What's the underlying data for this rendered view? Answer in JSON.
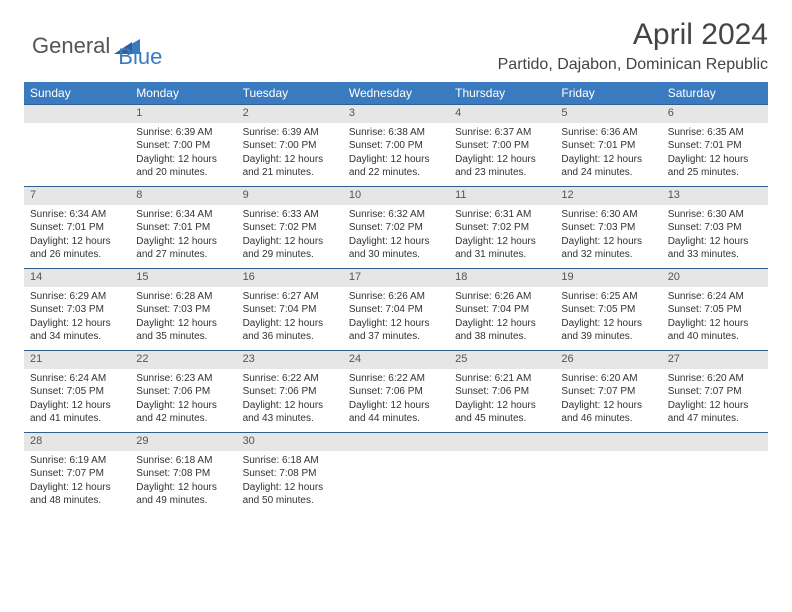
{
  "logo": {
    "general": "General",
    "blue": "Blue"
  },
  "title": "April 2024",
  "location": "Partido, Dajabon, Dominican Republic",
  "style": {
    "header_bg": "#3a7bbf",
    "header_fg": "#ffffff",
    "daynum_bg": "#e6e6e6",
    "row_divider": "#2f5f8f",
    "body_bg": "#ffffff",
    "text_color": "#333333",
    "title_color": "#444444",
    "font_family": "Arial, Helvetica, sans-serif",
    "month_title_fontsize": 30,
    "location_fontsize": 16,
    "header_fontsize": 12,
    "daynum_fontsize": 11,
    "cell_fontsize": 10
  },
  "weekdays": [
    "Sunday",
    "Monday",
    "Tuesday",
    "Wednesday",
    "Thursday",
    "Friday",
    "Saturday"
  ],
  "weeks": [
    [
      null,
      {
        "n": "1",
        "sunrise": "Sunrise: 6:39 AM",
        "sunset": "Sunset: 7:00 PM",
        "daylight": "Daylight: 12 hours and 20 minutes."
      },
      {
        "n": "2",
        "sunrise": "Sunrise: 6:39 AM",
        "sunset": "Sunset: 7:00 PM",
        "daylight": "Daylight: 12 hours and 21 minutes."
      },
      {
        "n": "3",
        "sunrise": "Sunrise: 6:38 AM",
        "sunset": "Sunset: 7:00 PM",
        "daylight": "Daylight: 12 hours and 22 minutes."
      },
      {
        "n": "4",
        "sunrise": "Sunrise: 6:37 AM",
        "sunset": "Sunset: 7:00 PM",
        "daylight": "Daylight: 12 hours and 23 minutes."
      },
      {
        "n": "5",
        "sunrise": "Sunrise: 6:36 AM",
        "sunset": "Sunset: 7:01 PM",
        "daylight": "Daylight: 12 hours and 24 minutes."
      },
      {
        "n": "6",
        "sunrise": "Sunrise: 6:35 AM",
        "sunset": "Sunset: 7:01 PM",
        "daylight": "Daylight: 12 hours and 25 minutes."
      }
    ],
    [
      {
        "n": "7",
        "sunrise": "Sunrise: 6:34 AM",
        "sunset": "Sunset: 7:01 PM",
        "daylight": "Daylight: 12 hours and 26 minutes."
      },
      {
        "n": "8",
        "sunrise": "Sunrise: 6:34 AM",
        "sunset": "Sunset: 7:01 PM",
        "daylight": "Daylight: 12 hours and 27 minutes."
      },
      {
        "n": "9",
        "sunrise": "Sunrise: 6:33 AM",
        "sunset": "Sunset: 7:02 PM",
        "daylight": "Daylight: 12 hours and 29 minutes."
      },
      {
        "n": "10",
        "sunrise": "Sunrise: 6:32 AM",
        "sunset": "Sunset: 7:02 PM",
        "daylight": "Daylight: 12 hours and 30 minutes."
      },
      {
        "n": "11",
        "sunrise": "Sunrise: 6:31 AM",
        "sunset": "Sunset: 7:02 PM",
        "daylight": "Daylight: 12 hours and 31 minutes."
      },
      {
        "n": "12",
        "sunrise": "Sunrise: 6:30 AM",
        "sunset": "Sunset: 7:03 PM",
        "daylight": "Daylight: 12 hours and 32 minutes."
      },
      {
        "n": "13",
        "sunrise": "Sunrise: 6:30 AM",
        "sunset": "Sunset: 7:03 PM",
        "daylight": "Daylight: 12 hours and 33 minutes."
      }
    ],
    [
      {
        "n": "14",
        "sunrise": "Sunrise: 6:29 AM",
        "sunset": "Sunset: 7:03 PM",
        "daylight": "Daylight: 12 hours and 34 minutes."
      },
      {
        "n": "15",
        "sunrise": "Sunrise: 6:28 AM",
        "sunset": "Sunset: 7:03 PM",
        "daylight": "Daylight: 12 hours and 35 minutes."
      },
      {
        "n": "16",
        "sunrise": "Sunrise: 6:27 AM",
        "sunset": "Sunset: 7:04 PM",
        "daylight": "Daylight: 12 hours and 36 minutes."
      },
      {
        "n": "17",
        "sunrise": "Sunrise: 6:26 AM",
        "sunset": "Sunset: 7:04 PM",
        "daylight": "Daylight: 12 hours and 37 minutes."
      },
      {
        "n": "18",
        "sunrise": "Sunrise: 6:26 AM",
        "sunset": "Sunset: 7:04 PM",
        "daylight": "Daylight: 12 hours and 38 minutes."
      },
      {
        "n": "19",
        "sunrise": "Sunrise: 6:25 AM",
        "sunset": "Sunset: 7:05 PM",
        "daylight": "Daylight: 12 hours and 39 minutes."
      },
      {
        "n": "20",
        "sunrise": "Sunrise: 6:24 AM",
        "sunset": "Sunset: 7:05 PM",
        "daylight": "Daylight: 12 hours and 40 minutes."
      }
    ],
    [
      {
        "n": "21",
        "sunrise": "Sunrise: 6:24 AM",
        "sunset": "Sunset: 7:05 PM",
        "daylight": "Daylight: 12 hours and 41 minutes."
      },
      {
        "n": "22",
        "sunrise": "Sunrise: 6:23 AM",
        "sunset": "Sunset: 7:06 PM",
        "daylight": "Daylight: 12 hours and 42 minutes."
      },
      {
        "n": "23",
        "sunrise": "Sunrise: 6:22 AM",
        "sunset": "Sunset: 7:06 PM",
        "daylight": "Daylight: 12 hours and 43 minutes."
      },
      {
        "n": "24",
        "sunrise": "Sunrise: 6:22 AM",
        "sunset": "Sunset: 7:06 PM",
        "daylight": "Daylight: 12 hours and 44 minutes."
      },
      {
        "n": "25",
        "sunrise": "Sunrise: 6:21 AM",
        "sunset": "Sunset: 7:06 PM",
        "daylight": "Daylight: 12 hours and 45 minutes."
      },
      {
        "n": "26",
        "sunrise": "Sunrise: 6:20 AM",
        "sunset": "Sunset: 7:07 PM",
        "daylight": "Daylight: 12 hours and 46 minutes."
      },
      {
        "n": "27",
        "sunrise": "Sunrise: 6:20 AM",
        "sunset": "Sunset: 7:07 PM",
        "daylight": "Daylight: 12 hours and 47 minutes."
      }
    ],
    [
      {
        "n": "28",
        "sunrise": "Sunrise: 6:19 AM",
        "sunset": "Sunset: 7:07 PM",
        "daylight": "Daylight: 12 hours and 48 minutes."
      },
      {
        "n": "29",
        "sunrise": "Sunrise: 6:18 AM",
        "sunset": "Sunset: 7:08 PM",
        "daylight": "Daylight: 12 hours and 49 minutes."
      },
      {
        "n": "30",
        "sunrise": "Sunrise: 6:18 AM",
        "sunset": "Sunset: 7:08 PM",
        "daylight": "Daylight: 12 hours and 50 minutes."
      },
      null,
      null,
      null,
      null
    ]
  ]
}
